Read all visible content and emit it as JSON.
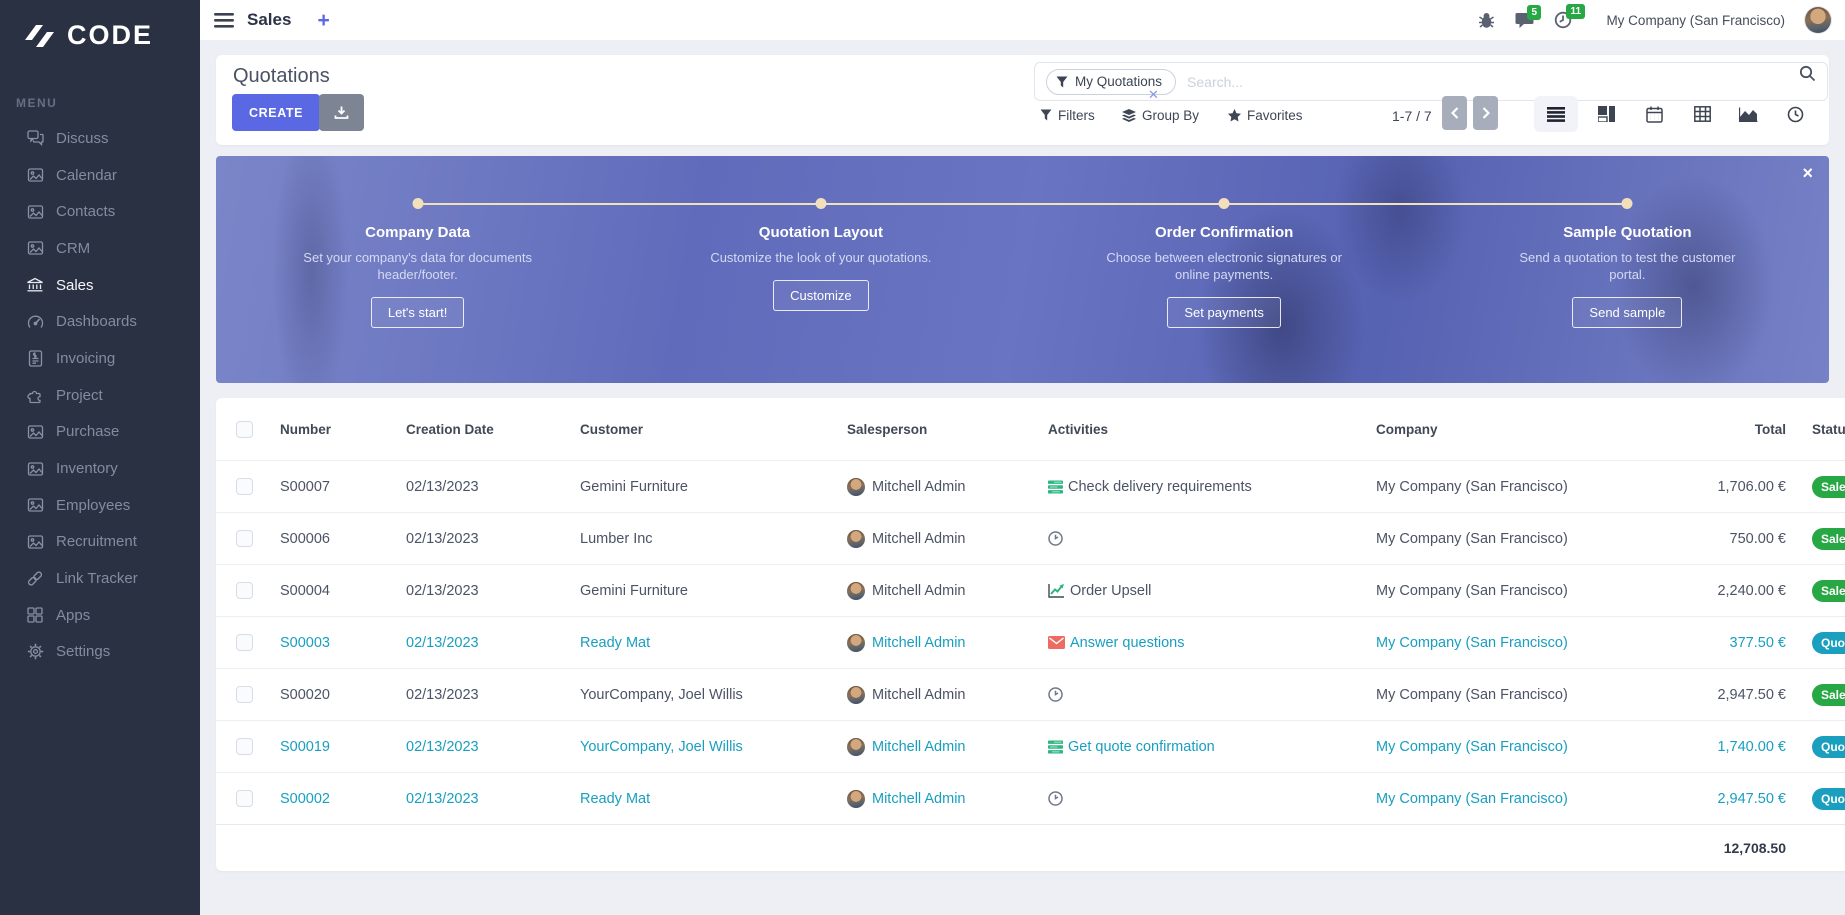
{
  "brand": {
    "name": "CODE"
  },
  "topbar": {
    "app_title": "Sales",
    "add_label": "+",
    "messages_badge": "5",
    "activities_badge": "11",
    "company": "My Company (San Francisco)"
  },
  "sidebar": {
    "menu_label": "MENU",
    "items": [
      {
        "label": "Discuss",
        "icon": "discuss",
        "active": "false"
      },
      {
        "label": "Calendar",
        "icon": "imgph",
        "active": "false"
      },
      {
        "label": "Contacts",
        "icon": "imgph",
        "active": "false"
      },
      {
        "label": "CRM",
        "icon": "imgph",
        "active": "false"
      },
      {
        "label": "Sales",
        "icon": "bank",
        "active": "true"
      },
      {
        "label": "Dashboards",
        "icon": "gauge",
        "active": "false"
      },
      {
        "label": "Invoicing",
        "icon": "invoice",
        "active": "false"
      },
      {
        "label": "Project",
        "icon": "puzzle",
        "active": "false"
      },
      {
        "label": "Purchase",
        "icon": "imgph",
        "active": "false"
      },
      {
        "label": "Inventory",
        "icon": "imgph",
        "active": "false"
      },
      {
        "label": "Employees",
        "icon": "imgph",
        "active": "false"
      },
      {
        "label": "Recruitment",
        "icon": "imgph",
        "active": "false"
      },
      {
        "label": "Link Tracker",
        "icon": "link",
        "active": "false"
      },
      {
        "label": "Apps",
        "icon": "apps",
        "active": "false"
      },
      {
        "label": "Settings",
        "icon": "gear",
        "active": "false"
      }
    ]
  },
  "header": {
    "title": "Quotations",
    "create_label": "CREATE",
    "filter_chip": "My Quotations",
    "search_placeholder": "Search...",
    "filters_label": "Filters",
    "group_by_label": "Group By",
    "favorites_label": "Favorites",
    "pager": "1-7 / 7"
  },
  "banner": {
    "close_label": "×",
    "steps": [
      {
        "title": "Company Data",
        "desc": "Set your company's data for documents header/footer.",
        "button": "Let's start!"
      },
      {
        "title": "Quotation Layout",
        "desc": "Customize the look of your quotations.",
        "button": "Customize"
      },
      {
        "title": "Order Confirmation",
        "desc": "Choose between electronic signatures or online payments.",
        "button": "Set payments"
      },
      {
        "title": "Sample Quotation",
        "desc": "Send a quotation to test the customer portal.",
        "button": "Send sample"
      }
    ]
  },
  "table": {
    "columns": [
      "Number",
      "Creation Date",
      "Customer",
      "Salesperson",
      "Activities",
      "Company",
      "Total",
      "Status"
    ],
    "rows": [
      {
        "number": "S00007",
        "date": "02/13/2023",
        "customer": "Gemini Furniture",
        "salesperson": "Mitchell Admin",
        "activity_icon": "tasks",
        "activity": "Check delivery requirements",
        "company": "My Company (San Francisco)",
        "total": "1,706.00 €",
        "status": "Sales Order",
        "variant": "sale",
        "accent": "normal"
      },
      {
        "number": "S00006",
        "date": "02/13/2023",
        "customer": "Lumber Inc",
        "salesperson": "Mitchell Admin",
        "activity_icon": "clock",
        "activity": "",
        "company": "My Company (San Francisco)",
        "total": "750.00 €",
        "status": "Sales Order",
        "variant": "sale",
        "accent": "normal"
      },
      {
        "number": "S00004",
        "date": "02/13/2023",
        "customer": "Gemini Furniture",
        "salesperson": "Mitchell Admin",
        "activity_icon": "chart",
        "activity": "Order Upsell",
        "company": "My Company (San Francisco)",
        "total": "2,240.00 €",
        "status": "Sales Order",
        "variant": "sale",
        "accent": "normal"
      },
      {
        "number": "S00003",
        "date": "02/13/2023",
        "customer": "Ready Mat",
        "salesperson": "Mitchell Admin",
        "activity_icon": "envelope",
        "activity": "Answer questions",
        "company": "My Company (San Francisco)",
        "total": "377.50 €",
        "status": "Quotation",
        "variant": "quotation",
        "accent": "info"
      },
      {
        "number": "S00020",
        "date": "02/13/2023",
        "customer": "YourCompany, Joel Willis",
        "salesperson": "Mitchell Admin",
        "activity_icon": "clock",
        "activity": "",
        "company": "My Company (San Francisco)",
        "total": "2,947.50 €",
        "status": "Sales Order",
        "variant": "sale",
        "accent": "normal"
      },
      {
        "number": "S00019",
        "date": "02/13/2023",
        "customer": "YourCompany, Joel Willis",
        "salesperson": "Mitchell Admin",
        "activity_icon": "tasks",
        "activity": "Get quote confirmation",
        "company": "My Company (San Francisco)",
        "total": "1,740.00 €",
        "status": "Quotation",
        "variant": "quotation",
        "accent": "info"
      },
      {
        "number": "S00002",
        "date": "02/13/2023",
        "customer": "Ready Mat",
        "salesperson": "Mitchell Admin",
        "activity_icon": "clock",
        "activity": "",
        "company": "My Company (San Francisco)",
        "total": "2,947.50 €",
        "status": "Quotation",
        "variant": "quotation",
        "accent": "info"
      }
    ],
    "footer_total": "12,708.50"
  },
  "colors": {
    "accent_indigo": "#5b68e4",
    "accent_teal": "#189fbf",
    "badge_green": "#28a745",
    "sidebar_bg": "#2a3142",
    "banner_overlay": "#606cbb",
    "stepper_cream": "#f2dfbc"
  }
}
